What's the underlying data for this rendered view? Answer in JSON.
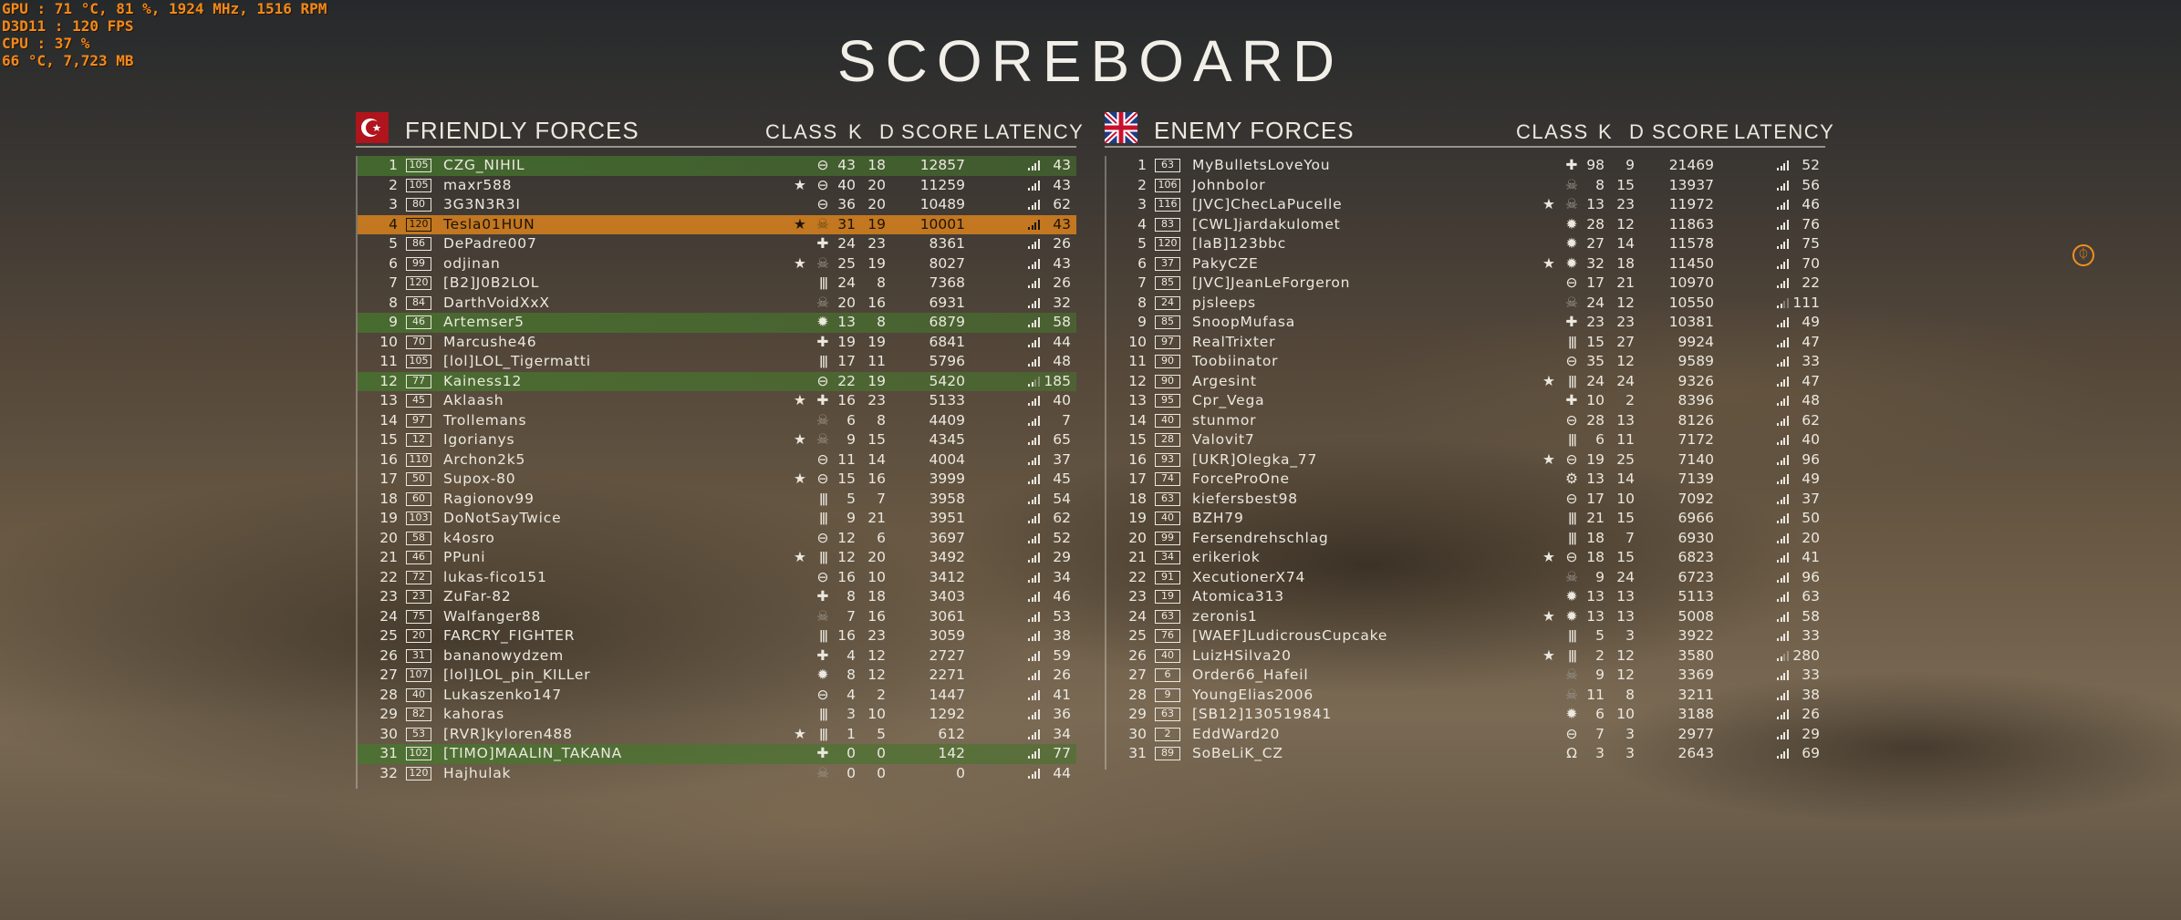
{
  "osd": [
    "GPU   : 71 °C, 81 %, 1924 MHz, 1516 RPM",
    "D3D11 : 120 FPS",
    "CPU   : 37 %",
    "66 °C, 7,723 MB"
  ],
  "title": "SCOREBOARD",
  "columns": {
    "class": "CLASS",
    "k": "K",
    "d": "D",
    "score": "SCORE",
    "latency": "LATENCY"
  },
  "colors": {
    "friendly_highlight": "#4a7a2d",
    "self_highlight": "#cd7d1e",
    "osd": "#f08a1c"
  },
  "row_fields": [
    "rank",
    "level",
    "name",
    "star",
    "class",
    "kills",
    "deaths",
    "score",
    "latency",
    "highlight"
  ],
  "friendly": {
    "title": "FRIENDLY FORCES",
    "flag": "ottoman-flag",
    "rows": [
      [
        1,
        105,
        "CZG_NIHIL",
        0,
        "scout",
        43,
        18,
        12857,
        43,
        "green"
      ],
      [
        2,
        105,
        "maxr588",
        1,
        "scout",
        40,
        20,
        11259,
        43,
        ""
      ],
      [
        3,
        80,
        "3G3N3R3I",
        0,
        "scout",
        36,
        20,
        10489,
        62,
        ""
      ],
      [
        4,
        120,
        "Tesla01HUN",
        1,
        "elite",
        31,
        19,
        10001,
        43,
        "orange"
      ],
      [
        5,
        86,
        "DePadre007",
        0,
        "medic",
        24,
        23,
        8361,
        26,
        ""
      ],
      [
        6,
        99,
        "odjinan",
        1,
        "elite",
        25,
        19,
        8027,
        43,
        ""
      ],
      [
        7,
        120,
        "[B2]J0B2LOL",
        0,
        "support",
        24,
        8,
        7368,
        26,
        ""
      ],
      [
        8,
        84,
        "DarthVoidXxX",
        0,
        "elite",
        20,
        16,
        6931,
        32,
        ""
      ],
      [
        9,
        46,
        "Artemser5",
        0,
        "assault",
        13,
        8,
        6879,
        58,
        "green"
      ],
      [
        10,
        70,
        "Marcushe46",
        0,
        "medic",
        19,
        19,
        6841,
        44,
        ""
      ],
      [
        11,
        105,
        "[lol]LOL_Tigermatti",
        0,
        "support",
        17,
        11,
        5796,
        48,
        ""
      ],
      [
        12,
        77,
        "Kainess12",
        0,
        "scout",
        22,
        19,
        5420,
        185,
        "green"
      ],
      [
        13,
        45,
        "Aklaash",
        1,
        "medic",
        16,
        23,
        5133,
        40,
        ""
      ],
      [
        14,
        97,
        "Trollemans",
        0,
        "elite",
        6,
        8,
        4409,
        7,
        ""
      ],
      [
        15,
        12,
        "Igorianys",
        1,
        "elite",
        9,
        15,
        4345,
        65,
        ""
      ],
      [
        16,
        110,
        "Archon2k5",
        0,
        "scout",
        11,
        14,
        4004,
        37,
        ""
      ],
      [
        17,
        50,
        "Supox-80",
        1,
        "scout",
        15,
        16,
        3999,
        45,
        ""
      ],
      [
        18,
        60,
        "Ragionov99",
        0,
        "support",
        5,
        7,
        3958,
        54,
        ""
      ],
      [
        19,
        103,
        "DoNotSayTwice",
        0,
        "support",
        9,
        21,
        3951,
        62,
        ""
      ],
      [
        20,
        58,
        "k4osro",
        0,
        "scout",
        12,
        6,
        3697,
        52,
        ""
      ],
      [
        21,
        46,
        "PPuni",
        1,
        "support",
        12,
        20,
        3492,
        29,
        ""
      ],
      [
        22,
        72,
        "lukas-fico151",
        0,
        "scout",
        16,
        10,
        3412,
        34,
        ""
      ],
      [
        23,
        23,
        "ZuFar-82",
        0,
        "medic",
        8,
        18,
        3403,
        46,
        ""
      ],
      [
        24,
        75,
        "Walfanger88",
        0,
        "elite",
        7,
        16,
        3061,
        53,
        ""
      ],
      [
        25,
        20,
        "FARCRY_FIGHTER",
        0,
        "support",
        16,
        23,
        3059,
        38,
        ""
      ],
      [
        26,
        31,
        "bananowydzem",
        0,
        "medic",
        4,
        12,
        2727,
        59,
        ""
      ],
      [
        27,
        107,
        "[lol]LOL_pin_KILLer",
        0,
        "assault",
        8,
        12,
        2271,
        26,
        ""
      ],
      [
        28,
        40,
        "Lukaszenko147",
        0,
        "scout",
        4,
        2,
        1447,
        41,
        ""
      ],
      [
        29,
        82,
        "kahoras",
        0,
        "support",
        3,
        10,
        1292,
        36,
        ""
      ],
      [
        30,
        53,
        "[RVR]kyloren488",
        1,
        "support",
        1,
        5,
        612,
        34,
        ""
      ],
      [
        31,
        102,
        "[TIMO]MAALIN_TAKANA",
        0,
        "medic",
        0,
        0,
        142,
        77,
        "green"
      ],
      [
        32,
        120,
        "Hajhulak",
        0,
        "elite",
        0,
        0,
        0,
        44,
        ""
      ]
    ]
  },
  "enemy": {
    "title": "ENEMY FORCES",
    "flag": "uk-flag",
    "rows": [
      [
        1,
        63,
        "MyBulletsLoveYou",
        0,
        "medic",
        98,
        9,
        21469,
        52,
        ""
      ],
      [
        2,
        106,
        "Johnbolor",
        0,
        "elite",
        8,
        15,
        13937,
        56,
        ""
      ],
      [
        3,
        116,
        "[JVC]ChecLaPucelle",
        1,
        "elite",
        13,
        23,
        11972,
        46,
        ""
      ],
      [
        4,
        83,
        "[CWL]jardakulomet",
        0,
        "assault",
        28,
        12,
        11863,
        76,
        ""
      ],
      [
        5,
        120,
        "[laB]123bbc",
        0,
        "assault",
        27,
        14,
        11578,
        75,
        ""
      ],
      [
        6,
        37,
        "PakyCZE",
        1,
        "assault",
        32,
        18,
        11450,
        70,
        ""
      ],
      [
        7,
        85,
        "[JVC]JeanLeForgeron",
        0,
        "scout",
        17,
        21,
        10970,
        22,
        ""
      ],
      [
        8,
        24,
        "pjsleeps",
        0,
        "elite",
        24,
        12,
        10550,
        111,
        ""
      ],
      [
        9,
        85,
        "SnoopMufasa",
        0,
        "medic",
        23,
        23,
        10381,
        49,
        ""
      ],
      [
        10,
        97,
        "RealTrixter",
        0,
        "support",
        15,
        27,
        9924,
        47,
        ""
      ],
      [
        11,
        90,
        "Toobiinator",
        0,
        "scout",
        35,
        12,
        9589,
        33,
        ""
      ],
      [
        12,
        90,
        "Argesint",
        1,
        "support",
        24,
        24,
        9326,
        47,
        ""
      ],
      [
        13,
        95,
        "Cpr_Vega",
        0,
        "medic",
        10,
        2,
        8396,
        48,
        ""
      ],
      [
        14,
        40,
        "stunmor",
        0,
        "scout",
        28,
        13,
        8126,
        62,
        ""
      ],
      [
        15,
        28,
        "Valovit7",
        0,
        "support",
        6,
        11,
        7172,
        40,
        ""
      ],
      [
        16,
        93,
        "[UKR]Olegka_77",
        1,
        "scout",
        19,
        25,
        7140,
        96,
        ""
      ],
      [
        17,
        74,
        "ForceProOne",
        0,
        "tanker",
        13,
        14,
        7139,
        49,
        ""
      ],
      [
        18,
        63,
        "kiefersbest98",
        0,
        "scout",
        17,
        10,
        7092,
        37,
        ""
      ],
      [
        19,
        40,
        "BZH79",
        0,
        "support",
        21,
        15,
        6966,
        50,
        ""
      ],
      [
        20,
        99,
        "Fersendrehschlag",
        0,
        "support",
        18,
        7,
        6930,
        20,
        ""
      ],
      [
        21,
        34,
        "erikeriok",
        1,
        "scout",
        18,
        15,
        6823,
        41,
        ""
      ],
      [
        22,
        91,
        "XecutionerX74",
        0,
        "elite",
        9,
        24,
        6723,
        96,
        ""
      ],
      [
        23,
        19,
        "Atomica313",
        0,
        "assault",
        13,
        13,
        5113,
        63,
        ""
      ],
      [
        24,
        63,
        "zeronis1",
        1,
        "assault",
        13,
        13,
        5008,
        58,
        ""
      ],
      [
        25,
        76,
        "[WAEF]LudicrousCupcake",
        0,
        "support",
        5,
        3,
        3922,
        33,
        ""
      ],
      [
        26,
        40,
        "LuizHSilva20",
        1,
        "support",
        2,
        12,
        3580,
        280,
        ""
      ],
      [
        27,
        6,
        "Order66_Hafeil",
        0,
        "elite",
        9,
        12,
        3369,
        33,
        ""
      ],
      [
        28,
        9,
        "YoungElias2006",
        0,
        "elite",
        11,
        8,
        3211,
        38,
        ""
      ],
      [
        29,
        63,
        "[SB12]130519841",
        0,
        "assault",
        6,
        10,
        3188,
        26,
        ""
      ],
      [
        30,
        2,
        "EddWard20",
        0,
        "scout",
        7,
        3,
        2977,
        29,
        ""
      ],
      [
        31,
        89,
        "SoBeLiK_CZ",
        0,
        "pilot",
        3,
        3,
        2643,
        69,
        ""
      ]
    ]
  },
  "icons": {
    "star": "★",
    "scout": "⊖",
    "medic": "✚",
    "support": "|||",
    "assault": "✹",
    "elite": "☠",
    "tanker": "⚙",
    "pilot": "Ω",
    "objective_marker": "⏀"
  }
}
